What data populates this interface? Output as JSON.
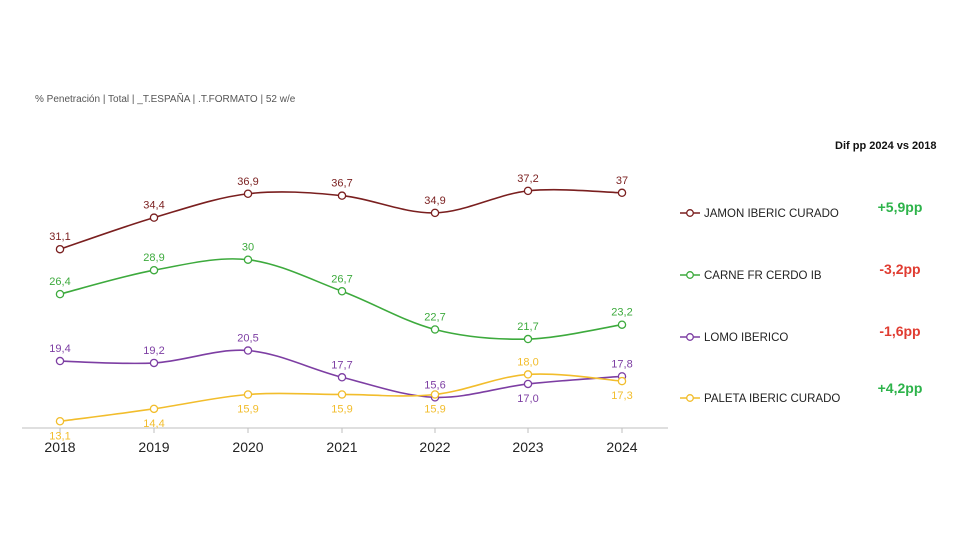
{
  "subtitle": "% Penetración | Total | _T.ESPAÑA | .T.FORMATO | 52 w/e",
  "dif_title": "Dif pp 2024 vs 2018",
  "chart_data": {
    "type": "line",
    "x": [
      "2018",
      "2019",
      "2020",
      "2021",
      "2022",
      "2023",
      "2024"
    ],
    "ylim": [
      8,
      42
    ],
    "grid": false,
    "series": [
      {
        "name": "JAMON IBERIC CURADO",
        "color": "#7a1f1f",
        "values": [
          31.1,
          34.4,
          36.9,
          36.7,
          34.9,
          37.2,
          37.0
        ],
        "labels": [
          "31,1",
          "34,4",
          "36,9",
          "36,7",
          "34,9",
          "37,2",
          "37"
        ],
        "diff": "+5,9pp",
        "diff_color": "#2db34a"
      },
      {
        "name": "CARNE FR CERDO IB",
        "color": "#3daa3d",
        "values": [
          26.4,
          28.9,
          30.0,
          26.7,
          22.7,
          21.7,
          23.2
        ],
        "labels": [
          "26,4",
          "28,9",
          "30",
          "26,7",
          "22,7",
          "21,7",
          "23,2"
        ],
        "diff": "-3,2pp",
        "diff_color": "#e03c31"
      },
      {
        "name": "LOMO IBERICO",
        "color": "#7d3ea3",
        "values": [
          19.4,
          19.2,
          20.5,
          17.7,
          15.6,
          17.0,
          17.8
        ],
        "labels": [
          "19,4",
          "19,2",
          "20,5",
          "17,7",
          "15,6",
          "17,0",
          "17,8"
        ],
        "diff": "-1,6pp",
        "diff_color": "#e03c31"
      },
      {
        "name": "PALETA IBERIC CURADO",
        "color": "#f2bd2c",
        "values": [
          13.1,
          14.4,
          15.9,
          15.9,
          15.9,
          18.0,
          17.3
        ],
        "labels": [
          "13,1",
          "14,4",
          "15,9",
          "15,9",
          "15,9",
          "18,0",
          "17,3"
        ],
        "diff": "+4,2pp",
        "diff_color": "#2db34a"
      }
    ]
  }
}
